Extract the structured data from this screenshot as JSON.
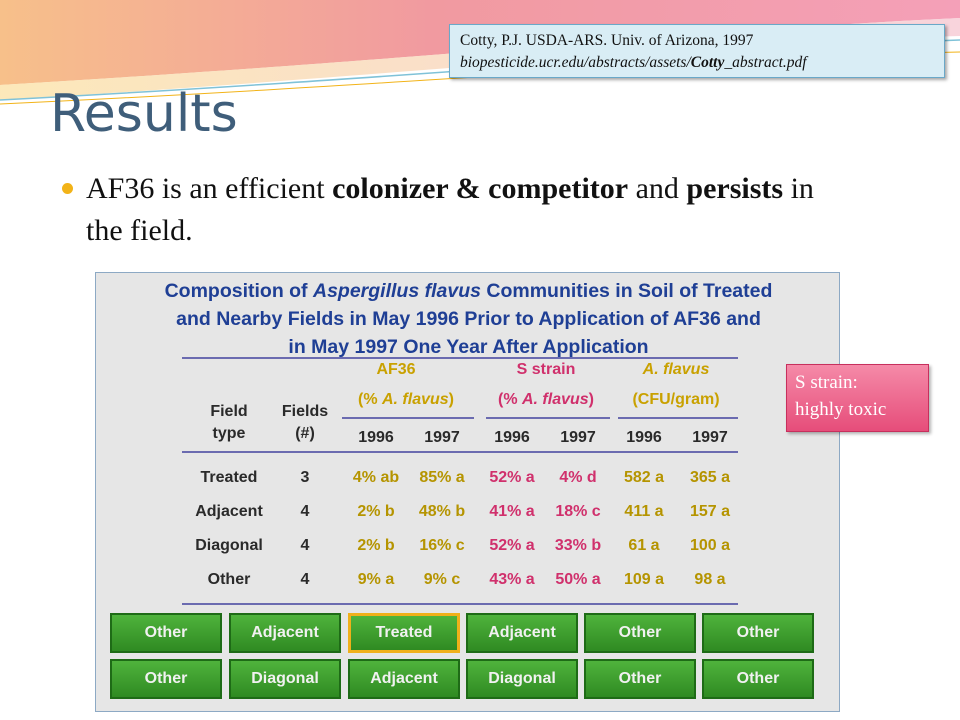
{
  "citation": {
    "line1": "Cotty, P.J. USDA-ARS. Univ. of Arizona, 1997",
    "line2_prefix": "biopesticide.ucr.edu/abstracts/assets/",
    "line2_bold": "Cotty",
    "line2_suffix": "_abstract.pdf"
  },
  "title": "Results",
  "bullet": {
    "t1": "AF36 is an efficient ",
    "b1": "colonizer & competitor",
    "t2": " and ",
    "b2": "persists",
    "t3": " in the field."
  },
  "table": {
    "title_l1a": "Composition of ",
    "title_l1b": "Aspergillus flavus",
    "title_l1c": " Communities in Soil of Treated",
    "title_l2": "and Nearby Fields in May 1996 Prior to Application of AF36 and",
    "title_l3": "in May 1997 One Year After Application",
    "group_af36": "AF36",
    "group_af36_sub_a": "(% ",
    "group_af36_sub_b": "A. flavus",
    "group_af36_sub_c": ")",
    "group_s": "S strain",
    "group_s_sub_a": "(% ",
    "group_s_sub_b": "A. flavus",
    "group_s_sub_c": ")",
    "group_af": "A. flavus",
    "group_af_sub": "(CFU/gram)",
    "col_field_l1": "Field",
    "col_field_l2": "type",
    "col_fields_l1": "Fields",
    "col_fields_l2": "(#)",
    "years": [
      "1996",
      "1997",
      "1996",
      "1997",
      "1996",
      "1997"
    ],
    "rows": [
      {
        "type": "Treated",
        "n": "3",
        "v": [
          "4% ab",
          "85% a",
          "52% a",
          "4% d",
          "582 a",
          "365 a"
        ]
      },
      {
        "type": "Adjacent",
        "n": "4",
        "v": [
          "2% b",
          "48% b",
          "41% a",
          "18% c",
          "411 a",
          "157 a"
        ]
      },
      {
        "type": "Diagonal",
        "n": "4",
        "v": [
          "2% b",
          "16% c",
          "52% a",
          "33% b",
          "61 a",
          "100 a"
        ]
      },
      {
        "type": "Other",
        "n": "4",
        "v": [
          "9% a",
          "9% c",
          "43% a",
          "50% a",
          "109 a",
          "98 a"
        ]
      }
    ],
    "grid_row1": [
      "Other",
      "Adjacent",
      "Treated",
      "Adjacent",
      "Other",
      "Other"
    ],
    "grid_row2": [
      "Other",
      "Diagonal",
      "Adjacent",
      "Diagonal",
      "Other",
      "Other"
    ]
  },
  "note": {
    "line1": "S strain:",
    "line2": "highly toxic"
  },
  "colors": {
    "title": "#3f5e7a",
    "bullet": "#f2b318",
    "table_title": "#1f3f95",
    "af36": "#c9a100",
    "s_strain": "#d0306c",
    "field_green": "#3a9a2a",
    "highlight": "#f0b01a",
    "note": "#e64d7a"
  }
}
